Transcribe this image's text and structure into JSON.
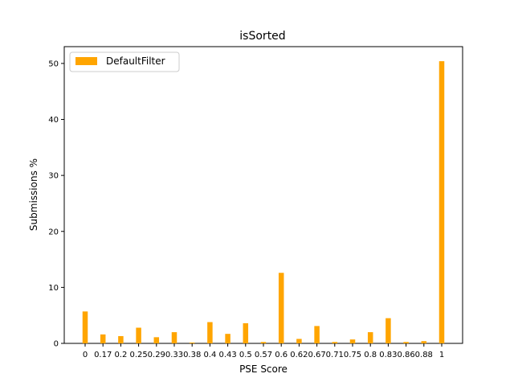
{
  "chart_data": {
    "type": "bar",
    "title": "isSorted",
    "xlabel": "PSE Score",
    "ylabel": "Submissions %",
    "categories": [
      "0",
      "0.17",
      "0.2",
      "0.25",
      "0.29",
      "0.33",
      "0.38",
      "0.4",
      "0.43",
      "0.5",
      "0.57",
      "0.6",
      "0.62",
      "0.67",
      "0.71",
      "0.75",
      "0.8",
      "0.83",
      "0.86",
      "0.88",
      "1"
    ],
    "series": [
      {
        "name": "DefaultFilter",
        "color": "#ffa500",
        "values": [
          5.7,
          1.6,
          1.3,
          2.8,
          1.1,
          2.0,
          0.15,
          3.8,
          1.7,
          3.6,
          0.25,
          12.6,
          0.8,
          3.1,
          0.25,
          0.7,
          2.0,
          4.5,
          0.25,
          0.4,
          50.4
        ]
      }
    ],
    "ylim": [
      0,
      53
    ],
    "yticks": [
      0,
      10,
      20,
      30,
      40,
      50
    ],
    "grid": false,
    "legend": "top-left"
  }
}
